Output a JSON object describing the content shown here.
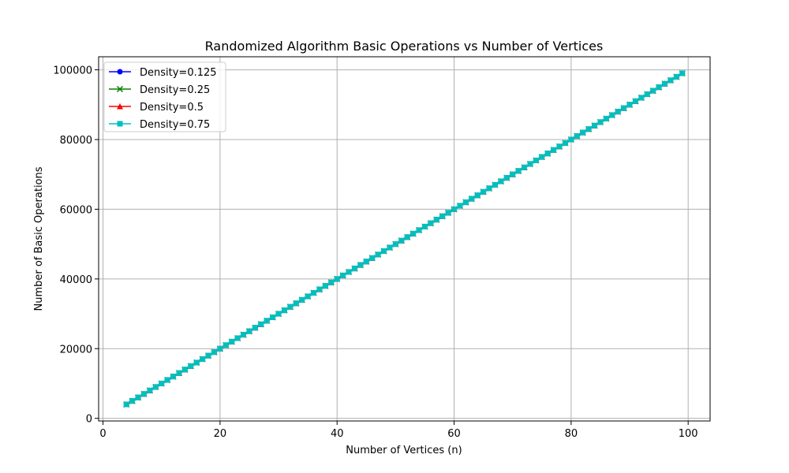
{
  "chart_data": {
    "type": "line",
    "title": "Randomized Algorithm Basic Operations vs Number of Vertices",
    "xlabel": "Number of Vertices (n)",
    "ylabel": "Number of Basic Operations",
    "xlim": [
      -0.75,
      103.75
    ],
    "ylim": [
      -750,
      103750
    ],
    "xticks": [
      0,
      20,
      40,
      60,
      80,
      100
    ],
    "yticks": [
      0,
      20000,
      40000,
      60000,
      80000,
      100000
    ],
    "grid": true,
    "legend_position": "top-left",
    "x_start": 4,
    "x_end": 99,
    "y_formula": "y = 1000*x approx",
    "series": [
      {
        "name": "Density=0.125",
        "color": "#0000ff",
        "marker": "circle",
        "slope": 1000
      },
      {
        "name": "Density=0.25",
        "color": "#008000",
        "marker": "x",
        "slope": 1000
      },
      {
        "name": "Density=0.5",
        "color": "#ff0000",
        "marker": "triangle",
        "slope": 1000
      },
      {
        "name": "Density=0.75",
        "color": "#00bfbf",
        "marker": "square",
        "slope": 1000
      }
    ]
  }
}
